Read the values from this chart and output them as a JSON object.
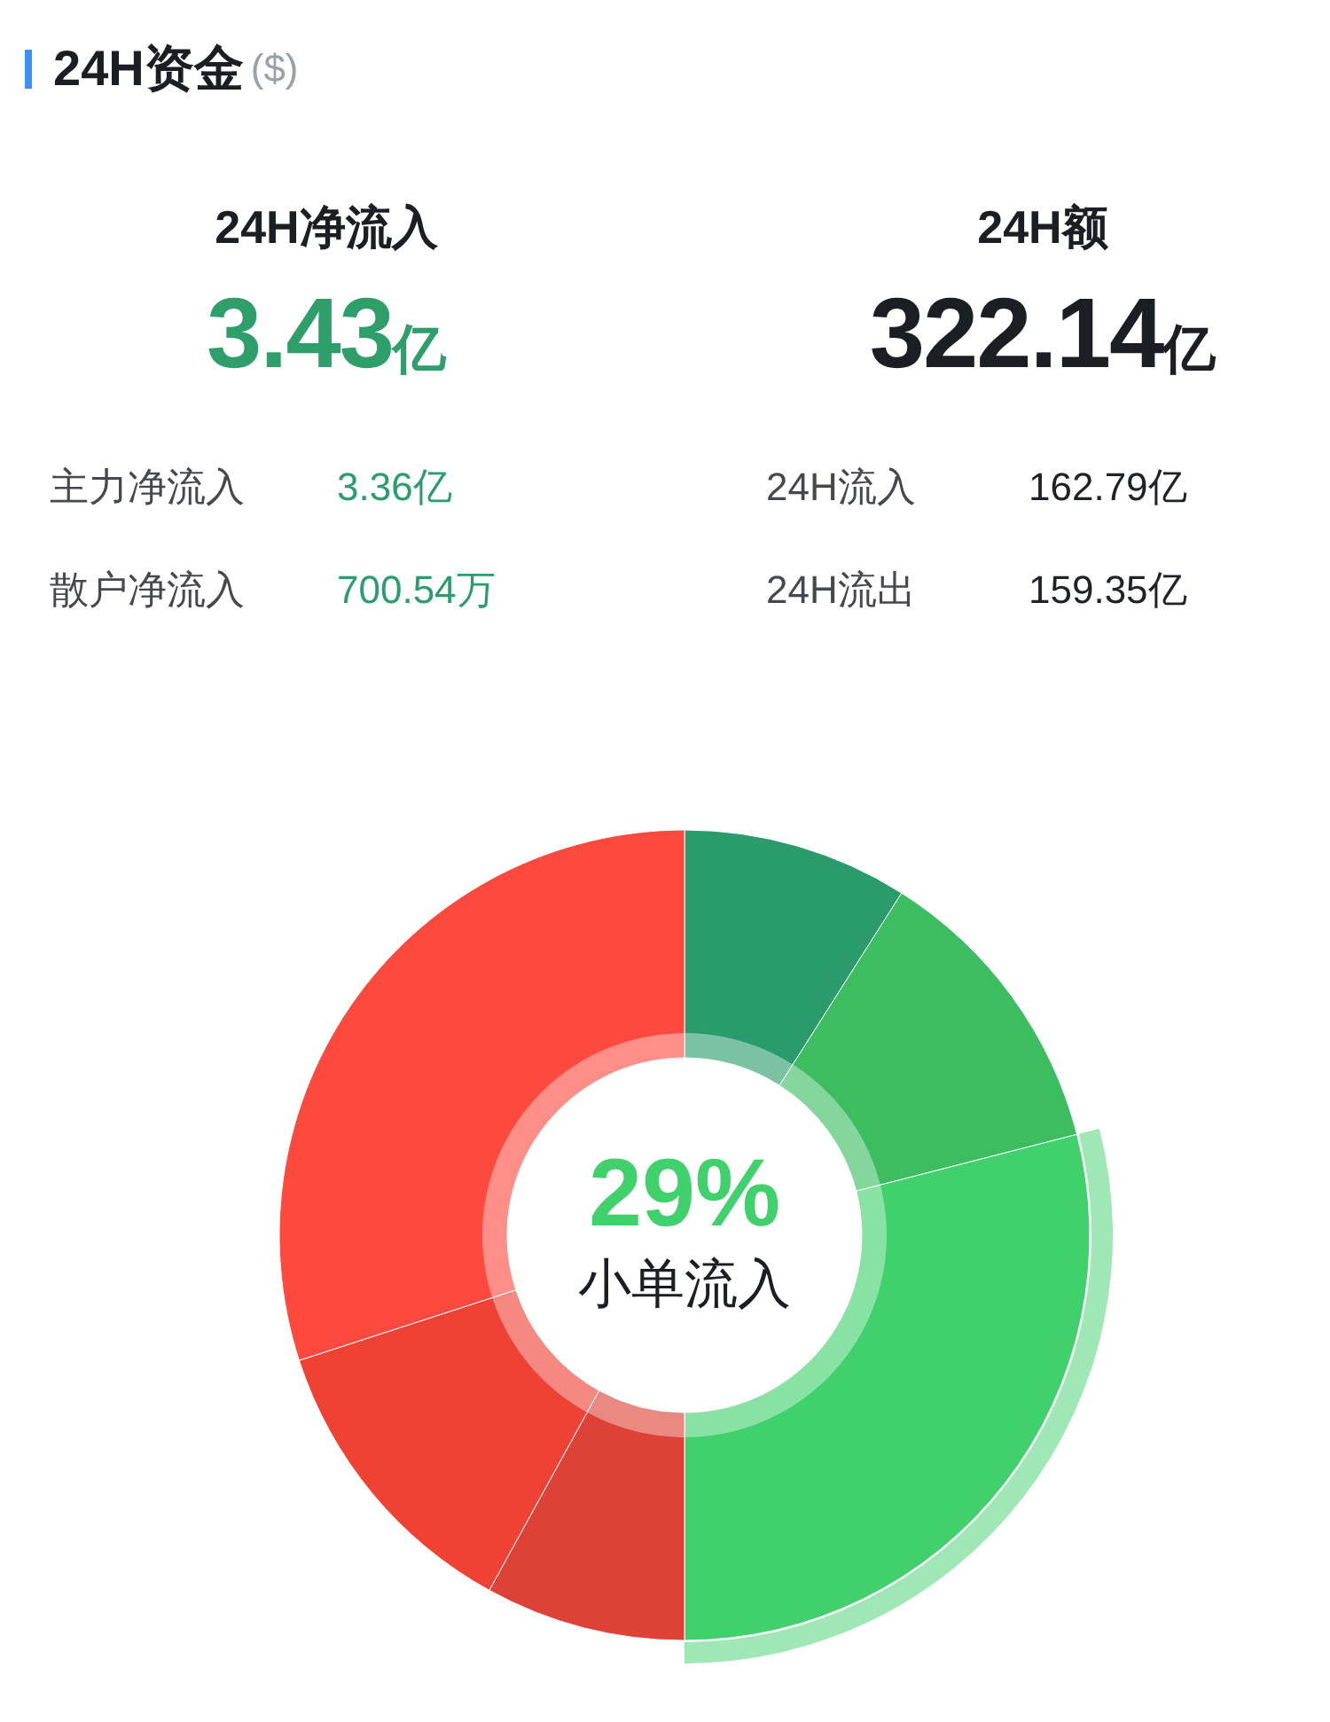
{
  "chart_data": [
    {
      "type": "other",
      "title": "24H资金",
      "subtitle": "($)",
      "annotations": [
        "24H净流入",
        "24H额",
        "3.43亿",
        "322.14亿",
        "主力净流入",
        "3.36亿",
        "24H流入",
        "162.79亿",
        "散户净流入",
        "700.54万",
        "24H流出",
        "159.35亿"
      ]
    },
    {
      "type": "donut",
      "categories": [
        null,
        null,
        "小单流入",
        null,
        null,
        null
      ],
      "values": [
        9,
        12,
        29,
        8,
        12,
        30
      ],
      "colors": [
        "#2a9b6b",
        "#3bbd60",
        "#40d06c",
        "#de4136",
        "#ef4234",
        "#fd493e"
      ],
      "value_labels": [
        null,
        null,
        "29%",
        null,
        null,
        null
      ]
    }
  ]
}
